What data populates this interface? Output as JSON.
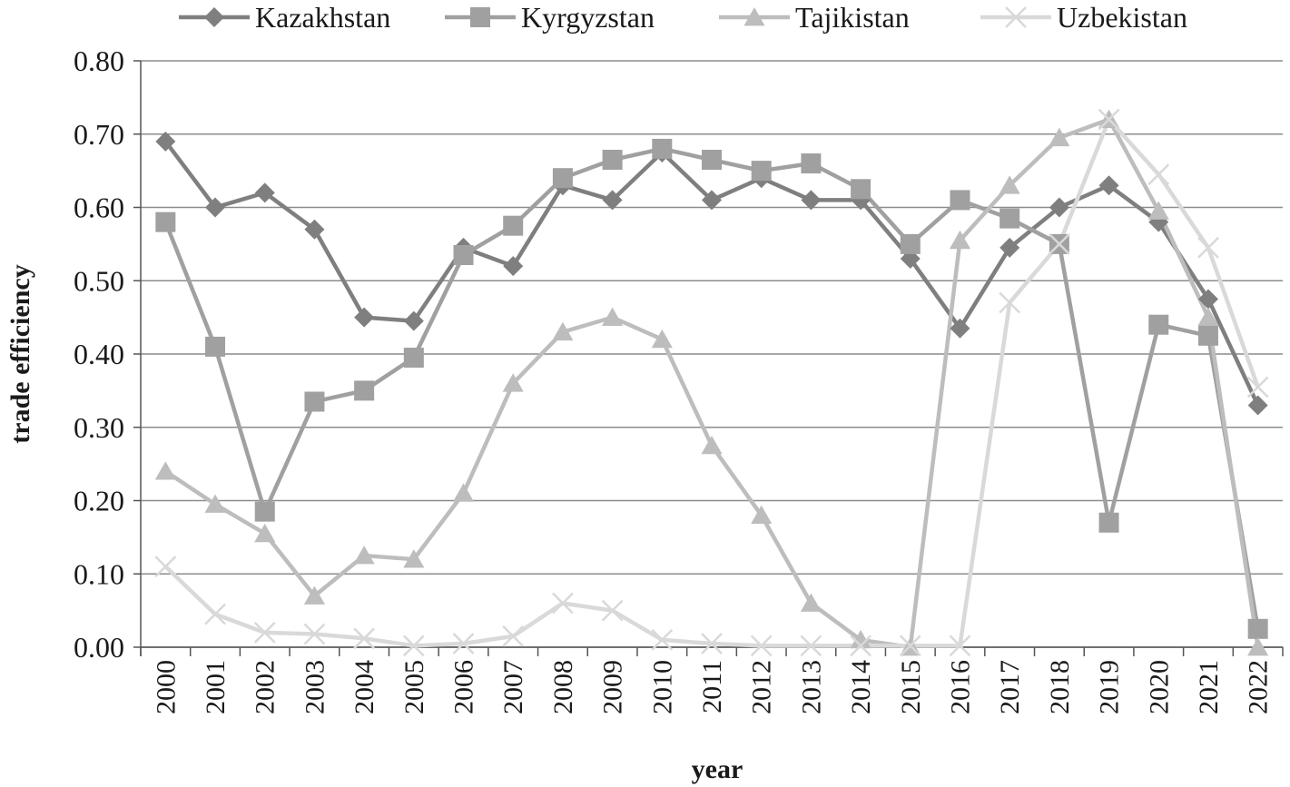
{
  "chart_data": {
    "type": "line",
    "title": "",
    "xlabel": "year",
    "ylabel": "trade efficiency",
    "ylim": [
      0,
      0.8
    ],
    "yticks": [
      "0.00",
      "0.10",
      "0.20",
      "0.30",
      "0.40",
      "0.50",
      "0.60",
      "0.70",
      "0.80"
    ],
    "grid": "horizontal",
    "legend_position": "top",
    "categories": [
      "2000",
      "2001",
      "2002",
      "2003",
      "2004",
      "2005",
      "2006",
      "2007",
      "2008",
      "2009",
      "2010",
      "2011",
      "2012",
      "2013",
      "2014",
      "2015",
      "2016",
      "2017",
      "2018",
      "2019",
      "2020",
      "2021",
      "2022"
    ],
    "series": [
      {
        "name": "Kazakhstan",
        "marker": "diamond",
        "color": "#7f7f7f",
        "values": [
          0.69,
          0.6,
          0.62,
          0.57,
          0.45,
          0.445,
          0.545,
          0.52,
          0.63,
          0.61,
          0.675,
          0.61,
          0.64,
          0.61,
          0.61,
          0.53,
          0.435,
          0.545,
          0.6,
          0.63,
          0.58,
          0.475,
          0.33
        ]
      },
      {
        "name": "Kyrgyzstan",
        "marker": "square",
        "color": "#a0a0a0",
        "values": [
          0.58,
          0.41,
          0.185,
          0.335,
          0.35,
          0.395,
          0.535,
          0.575,
          0.64,
          0.665,
          0.68,
          0.665,
          0.65,
          0.66,
          0.625,
          0.55,
          0.61,
          0.585,
          0.55,
          0.17,
          0.44,
          0.425,
          0.025
        ]
      },
      {
        "name": "Tajikistan",
        "marker": "triangle",
        "color": "#bdbdbd",
        "values": [
          0.24,
          0.195,
          0.155,
          0.07,
          0.125,
          0.12,
          0.21,
          0.36,
          0.43,
          0.45,
          0.42,
          0.275,
          0.18,
          0.06,
          0.01,
          0.0,
          0.555,
          0.63,
          0.695,
          0.72,
          0.595,
          0.45,
          0.0
        ]
      },
      {
        "name": "Uzbekistan",
        "marker": "x",
        "color": "#d9d9d9",
        "values": [
          0.11,
          0.045,
          0.02,
          0.018,
          0.012,
          0.002,
          0.005,
          0.015,
          0.06,
          0.05,
          0.01,
          0.005,
          0.002,
          0.002,
          0.002,
          0.002,
          0.002,
          0.47,
          0.55,
          0.72,
          0.645,
          0.545,
          0.355
        ]
      }
    ]
  }
}
